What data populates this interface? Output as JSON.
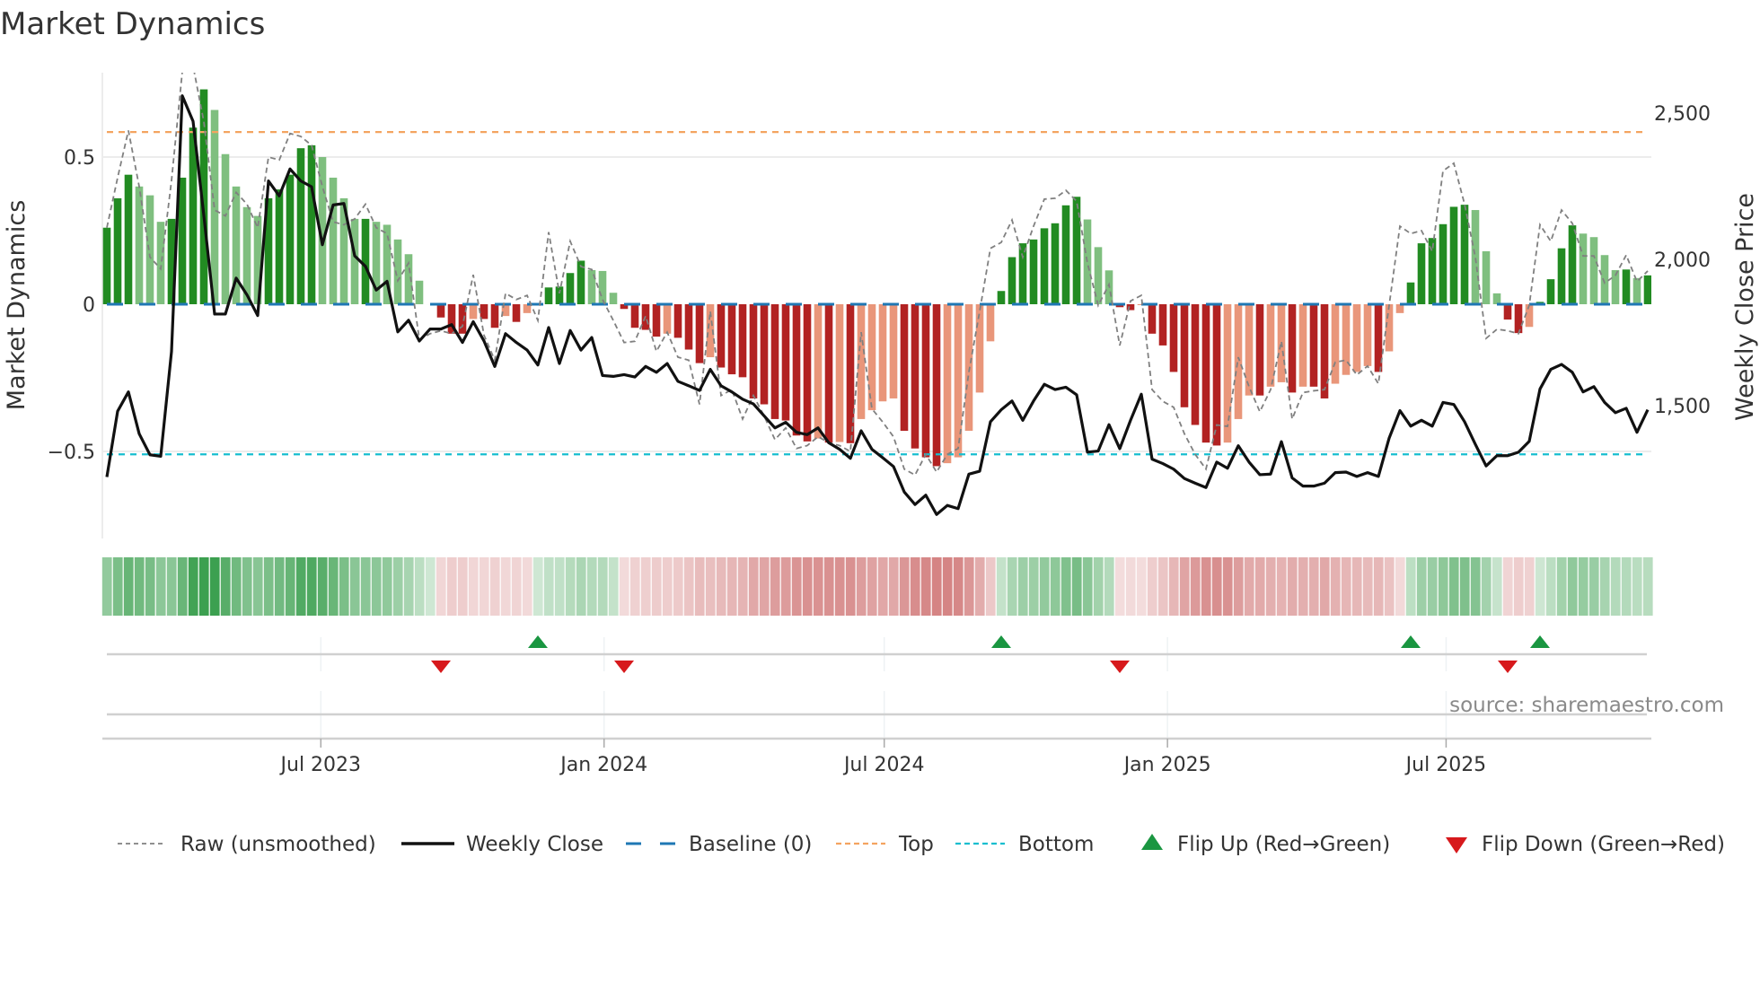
{
  "chart_data": {
    "type": "bar",
    "title": "Market Dynamics",
    "ylabel": "Market Dynamics",
    "y2label": "Weekly Close Price",
    "ylim": [
      -0.72,
      0.787
    ],
    "y2lim": [
      1100,
      2640
    ],
    "yticks": [
      {
        "v": 0.5,
        "label": "0.5"
      },
      {
        "v": 0,
        "label": "0"
      },
      {
        "v": -0.5,
        "label": "−0.5"
      }
    ],
    "y2ticks": [
      {
        "v": 2500,
        "label": "2,500"
      },
      {
        "v": 2000,
        "label": "2,000"
      },
      {
        "v": 1500,
        "label": "1,500"
      }
    ],
    "xticks": [
      {
        "date": "2023-07-01",
        "label": "Jul 2023"
      },
      {
        "date": "2024-01-01",
        "label": "Jan 2024"
      },
      {
        "date": "2024-07-01",
        "label": "Jul 2024"
      },
      {
        "date": "2025-01-01",
        "label": "Jan 2025"
      },
      {
        "date": "2025-07-01",
        "label": "Jul 2025"
      }
    ],
    "x_start": "2023-02-12",
    "x_step_days": 7,
    "top_level": 0.585,
    "bottom_level": -0.51,
    "baseline": 0,
    "dynamics": [
      0.26,
      0.36,
      0.44,
      0.4,
      0.37,
      0.28,
      0.29,
      0.43,
      0.6,
      0.73,
      0.66,
      0.51,
      0.4,
      0.33,
      0.3,
      0.36,
      0.39,
      0.44,
      0.53,
      0.54,
      0.5,
      0.43,
      0.36,
      0.29,
      0.29,
      0.28,
      0.27,
      0.22,
      0.17,
      0.08,
      0,
      -0.045,
      -0.1,
      -0.1,
      -0.05,
      -0.05,
      -0.08,
      -0.04,
      -0.06,
      -0.03,
      0.004,
      0.057,
      0.06,
      0.106,
      0.148,
      0.116,
      0.113,
      0.039,
      -0.016,
      -0.08,
      -0.087,
      -0.11,
      -0.1,
      -0.114,
      -0.154,
      -0.2,
      -0.18,
      -0.215,
      -0.238,
      -0.248,
      -0.32,
      -0.34,
      -0.39,
      -0.395,
      -0.446,
      -0.466,
      -0.456,
      -0.47,
      -0.468,
      -0.472,
      -0.39,
      -0.36,
      -0.33,
      -0.32,
      -0.43,
      -0.49,
      -0.52,
      -0.55,
      -0.54,
      -0.52,
      -0.43,
      -0.3,
      -0.126,
      0.045,
      0.16,
      0.207,
      0.22,
      0.258,
      0.275,
      0.336,
      0.365,
      0.288,
      0.194,
      0.115,
      -0.01,
      -0.02,
      -0.003,
      -0.1,
      -0.14,
      -0.23,
      -0.35,
      -0.41,
      -0.47,
      -0.48,
      -0.47,
      -0.39,
      -0.31,
      -0.31,
      -0.28,
      -0.265,
      -0.3,
      -0.28,
      -0.28,
      -0.32,
      -0.27,
      -0.24,
      -0.23,
      -0.21,
      -0.23,
      -0.16,
      -0.03,
      0.074,
      0.207,
      0.225,
      0.272,
      0.331,
      0.338,
      0.32,
      0.18,
      0.037,
      -0.052,
      -0.098,
      -0.077,
      0.008,
      0.085,
      0.19,
      0.268,
      0.24,
      0.228,
      0.167,
      0.116,
      0.118,
      0.089,
      0.098
    ],
    "raw": [
      0.26,
      0.43,
      0.59,
      0.4,
      0.16,
      0.12,
      0.42,
      0.79,
      0.81,
      0.62,
      0.32,
      0.3,
      0.38,
      0.34,
      0.26,
      0.5,
      0.49,
      0.58,
      0.57,
      0.54,
      0.4,
      0.28,
      0.27,
      0.29,
      0.34,
      0.26,
      0.24,
      0.08,
      0.14,
      -0.12,
      -0.1,
      -0.09,
      -0.1,
      -0.075,
      0.1,
      -0.105,
      -0.19,
      0.037,
      0.016,
      0.03,
      -0.055,
      0.245,
      0.037,
      0.214,
      0.128,
      0.118,
      0.016,
      -0.055,
      -0.13,
      -0.126,
      -0.04,
      -0.16,
      -0.095,
      -0.18,
      -0.19,
      -0.34,
      -0.024,
      -0.31,
      -0.29,
      -0.39,
      -0.31,
      -0.38,
      -0.46,
      -0.42,
      -0.49,
      -0.48,
      -0.45,
      -0.47,
      -0.48,
      -0.5,
      -0.095,
      -0.355,
      -0.4,
      -0.45,
      -0.56,
      -0.58,
      -0.51,
      -0.57,
      -0.51,
      -0.49,
      -0.23,
      -0.024,
      0.19,
      0.21,
      0.286,
      0.16,
      0.265,
      0.357,
      0.36,
      0.387,
      0.35,
      0.14,
      -0.004,
      0.067,
      -0.14,
      0.011,
      0.03,
      -0.29,
      -0.33,
      -0.35,
      -0.44,
      -0.51,
      -0.56,
      -0.41,
      -0.415,
      -0.18,
      -0.28,
      -0.365,
      -0.29,
      -0.126,
      -0.39,
      -0.3,
      -0.294,
      -0.29,
      -0.197,
      -0.19,
      -0.24,
      -0.21,
      -0.27,
      -0.004,
      0.265,
      0.24,
      0.25,
      0.18,
      0.453,
      0.479,
      0.34,
      0.16,
      -0.116,
      -0.085,
      -0.09,
      -0.1,
      -0.004,
      0.27,
      0.214,
      0.32,
      0.275,
      0.164,
      0.164,
      0.072,
      0.098,
      0.167,
      0.077,
      0.113
    ],
    "weekly_close": [
      1256,
      1481,
      1547,
      1404,
      1332,
      1327,
      1685,
      2559,
      2472,
      2150,
      1813,
      1813,
      1936,
      1879,
      1808,
      2268,
      2217,
      2309,
      2268,
      2248,
      2050,
      2186,
      2191,
      2012,
      1976,
      1895,
      1925,
      1752,
      1792,
      1721,
      1762,
      1762,
      1777,
      1716,
      1787,
      1721,
      1634,
      1746,
      1716,
      1690,
      1639,
      1767,
      1644,
      1757,
      1690,
      1733,
      1603,
      1600,
      1606,
      1598,
      1634,
      1614,
      1644,
      1583,
      1568,
      1552,
      1624,
      1568,
      1547,
      1522,
      1506,
      1465,
      1424,
      1443,
      1409,
      1401,
      1424,
      1373,
      1351,
      1320,
      1414,
      1351,
      1322,
      1292,
      1205,
      1162,
      1194,
      1128,
      1159,
      1148,
      1266,
      1276,
      1445,
      1486,
      1516,
      1450,
      1516,
      1573,
      1555,
      1563,
      1537,
      1341,
      1345,
      1435,
      1353,
      1450,
      1539,
      1317,
      1302,
      1283,
      1251,
      1235,
      1220,
      1307,
      1286,
      1363,
      1307,
      1264,
      1266,
      1377,
      1253,
      1225,
      1225,
      1235,
      1271,
      1273,
      1258,
      1271,
      1258,
      1389,
      1483,
      1430,
      1450,
      1430,
      1511,
      1504,
      1445,
      1368,
      1294,
      1329,
      1329,
      1341,
      1378,
      1557,
      1624,
      1641,
      1614,
      1547,
      1565,
      1511,
      1476,
      1491,
      1409,
      1486
    ],
    "flip_up_dates": [
      "2023-11-19",
      "2024-09-15",
      "2025-06-08",
      "2025-08-31"
    ],
    "flip_down_dates": [
      "2023-09-17",
      "2024-01-14",
      "2024-12-01",
      "2025-08-10"
    ],
    "legend": [
      {
        "label": "Raw (unsmoothed)",
        "key": "raw"
      },
      {
        "label": "Weekly Close",
        "key": "close"
      },
      {
        "label": "Baseline (0)",
        "key": "baseline"
      },
      {
        "label": "Top",
        "key": "top"
      },
      {
        "label": "Bottom",
        "key": "bottom"
      },
      {
        "label": "Flip Up (Red→Green)",
        "key": "flipup"
      },
      {
        "label": "Flip Down (Green→Red)",
        "key": "flipdown"
      }
    ],
    "legend_position": "bottom",
    "source": "source: sharemaestro.com",
    "colors": {
      "green_strong": "#228b22",
      "green_weak": "#7fbf7f",
      "red_strong": "#b22222",
      "red_weak": "#e9967a",
      "raw": "#808080",
      "close": "#111111",
      "baseline": "#1f77b4",
      "top": "#f4a460",
      "bottom": "#17becf",
      "flip_up": "#1a9641",
      "flip_down": "#d7191c"
    }
  }
}
